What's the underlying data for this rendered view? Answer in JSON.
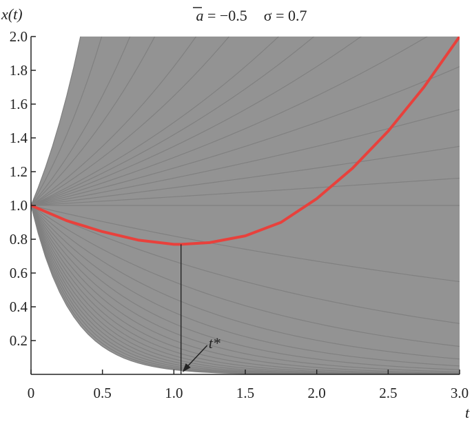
{
  "chart_data": {
    "type": "line",
    "title_parts": {
      "a_symbol": "a",
      "a_value": " = −0.5",
      "sigma_text": "σ = 0.7"
    },
    "xlabel": "t",
    "ylabel": "x(t)",
    "xlim": [
      0,
      3.0
    ],
    "ylim": [
      0,
      2.0
    ],
    "x_ticks": [
      "0",
      "0.5",
      "1.0",
      "1.5",
      "2.0",
      "2.5",
      "3.0"
    ],
    "x_tick_values": [
      0,
      0.5,
      1.0,
      1.5,
      2.0,
      2.5,
      3.0
    ],
    "y_ticks": [
      "0.2",
      "0.4",
      "0.6",
      "0.8",
      "1.0",
      "1.2",
      "1.4",
      "1.6",
      "1.8",
      "2.0"
    ],
    "y_tick_values": [
      0.2,
      0.4,
      0.6,
      0.8,
      1.0,
      1.2,
      1.4,
      1.6,
      1.8,
      2.0
    ],
    "series": [
      {
        "role": "sample-paths",
        "color": "#808080",
        "x0": 0,
        "y0": 1.0,
        "growth_rates": [
          -3.6,
          -3.4,
          -3.2,
          -3.0,
          -2.8,
          -2.6,
          -2.4,
          -2.2,
          -2.0,
          -1.8,
          -1.6,
          -1.4,
          -1.2,
          -1.0,
          -0.8,
          -0.6,
          -0.4,
          -0.2,
          0.0,
          0.05,
          0.1,
          0.15,
          0.2,
          0.25,
          0.3,
          0.35,
          0.4,
          0.5,
          0.6,
          0.8,
          1.0,
          1.4,
          2.0
        ]
      },
      {
        "role": "mean-curve",
        "color": "#e8413c",
        "x": [
          0,
          0.25,
          0.5,
          0.75,
          1.0,
          1.05,
          1.25,
          1.5,
          1.75,
          2.0,
          2.25,
          2.5,
          2.75,
          3.0
        ],
        "y": [
          1.0,
          0.91,
          0.845,
          0.795,
          0.77,
          0.77,
          0.78,
          0.82,
          0.9,
          1.04,
          1.22,
          1.44,
          1.7,
          2.0
        ]
      }
    ],
    "annotations": [
      {
        "label": "t*",
        "x": 1.05,
        "y_top": 0.77
      }
    ],
    "grid": false
  }
}
